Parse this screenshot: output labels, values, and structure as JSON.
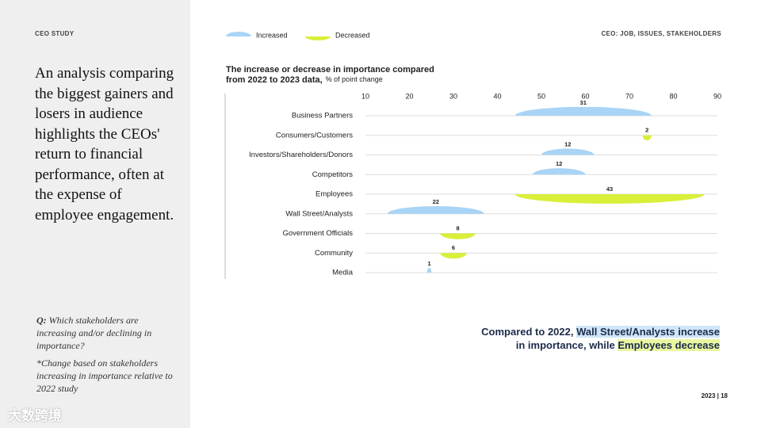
{
  "header": {
    "left": "CEO STUDY",
    "right": "CEO: JOB, ISSUES, STAKEHOLDERS"
  },
  "lead": "An analysis comparing the biggest gainers and losers in audience highlights the CEOs' return to financial performance, often at the expense of employee engagement.",
  "question": {
    "label": "Q:",
    "text": "Which stakeholders are increasing and/or declining in importance?"
  },
  "note": "*Change based on stakeholders increasing in importance relative to 2022 study",
  "annotation": {
    "line1": "Compared to 2022,",
    "line1_highlight": "Wall Street/Analysts increase",
    "line2": "in importance, while",
    "line2_highlight": "Employees decrease"
  },
  "footer": {
    "year": "2023",
    "page": "18"
  },
  "watermark": "大数跨境",
  "chart_data": {
    "type": "range_bump",
    "title": "The increase or decrease in importance compared",
    "title2": "from 2022 to 2023 data,",
    "subtitle": "% of point change",
    "categories": [
      "Business Partners",
      "Consumers/Customers",
      "Investors/Shareholders/Donors",
      "Competitors",
      "Employees",
      "Wall Street/Analysts",
      "Government Officials",
      "Community",
      "Media"
    ],
    "start": [
      44,
      73,
      50,
      48,
      44,
      15,
      27,
      27,
      24
    ],
    "series": [
      {
        "name": "Increased",
        "color": "#a9d4f5",
        "values": [
          31,
          null,
          12,
          12,
          null,
          22,
          null,
          null,
          1
        ]
      },
      {
        "name": "Decreased",
        "color": "#d9ef3a",
        "values": [
          null,
          2,
          null,
          null,
          43,
          null,
          8,
          6,
          null
        ]
      }
    ],
    "xlim": [
      10,
      90
    ],
    "xticks": [
      10,
      20,
      30,
      40,
      50,
      60,
      70,
      80,
      90
    ],
    "grid": true
  }
}
